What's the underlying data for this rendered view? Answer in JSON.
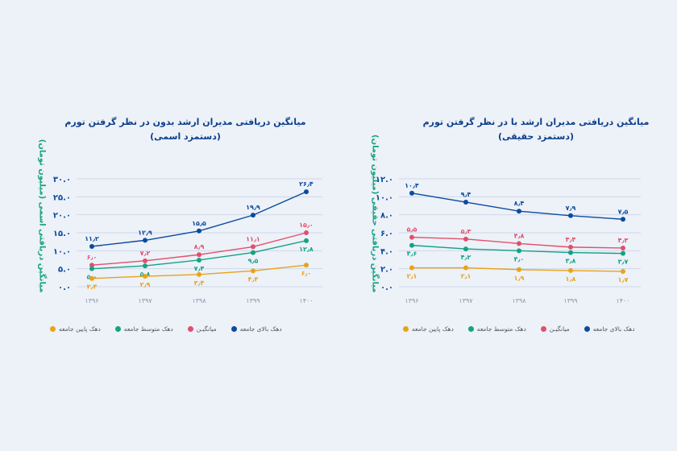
{
  "left": {
    "title_line1": "میانگین دریافتی مدیران ارشد بدون در نظر گرفتن تورم",
    "title_line2": "(دستمزد اسمی)",
    "ylabel": "میانگین دریافتی اسمی (میلیون تومان)"
  },
  "right": {
    "title_line1": "میانگین دریافتی مدیران ارشد با در نظر گرفتن تورم",
    "title_line2": "(دستمزد حقیقی)",
    "ylabel": "میانگین دریافتی حقیقی (میلیون تومان)"
  },
  "legend": [
    {
      "label": "دهک پایین جامعه",
      "color": "#e8a317"
    },
    {
      "label": "دهک متوسط جامعه",
      "color": "#13a383"
    },
    {
      "label": "میانگیـن",
      "color": "#e0506a"
    },
    {
      "label": "دهک بالای جامعه",
      "color": "#0b4b9e"
    }
  ],
  "chart_data": [
    {
      "type": "line",
      "title": "میانگین دریافتی مدیران ارشد بدون در نظر گرفتن تورم (دستمزد اسمی)",
      "xlabel": "",
      "ylabel": "میانگین دریافتی اسمی (میلیون تومان)",
      "categories": [
        "۱۳۹۶",
        "۱۳۹۷",
        "۱۳۹۸",
        "۱۳۹۹",
        "۱۴۰۰"
      ],
      "yticks": [
        "۰.۰",
        "۵.۰",
        "۱۰.۰",
        "۱۵.۰",
        "۲۰.۰",
        "۲۵.۰",
        "۳۰.۰"
      ],
      "ylim": [
        0,
        30
      ],
      "grid": true,
      "legend_position": "bottom",
      "series": [
        {
          "name": "دهک بالای جامعه",
          "color": "#0b4b9e",
          "values": [
            11.2,
            12.9,
            15.5,
            19.9,
            26.4
          ],
          "labels": [
            "۱۱٫۲",
            "۱۲٫۹",
            "۱۵٫۵",
            "۱۹٫۹",
            "۲۶٫۴"
          ]
        },
        {
          "name": "میانگیـن",
          "color": "#e0506a",
          "values": [
            6.0,
            7.2,
            8.9,
            11.1,
            15.0
          ],
          "labels": [
            "۶٫۰",
            "۷٫۲",
            "۸٫۹",
            "۱۱٫۱",
            "۱۵٫۰"
          ]
        },
        {
          "name": "دهک متوسط جامعه",
          "color": "#13a383",
          "values": [
            5.0,
            5.8,
            7.4,
            9.5,
            12.8
          ],
          "labels": [
            "۵٫۰",
            "۵٫۸",
            "۷٫۴",
            "۹٫۵",
            "۱۲٫۸"
          ]
        },
        {
          "name": "دهک پایین جامعه",
          "color": "#e8a317",
          "values": [
            2.3,
            2.9,
            3.4,
            4.4,
            6.0
          ],
          "labels": [
            "۲٫۳",
            "۲٫۹",
            "۳٫۴",
            "۴٫۴",
            "۶٫۰"
          ]
        }
      ]
    },
    {
      "type": "line",
      "title": "میانگین دریافتی مدیران ارشد با در نظر گرفتن تورم (دستمزد حقیقی)",
      "xlabel": "",
      "ylabel": "میانگین دریافتی حقیقی (میلیون تومان)",
      "categories": [
        "۱۳۹۶",
        "۱۳۹۷",
        "۱۳۹۸",
        "۱۳۹۹",
        "۱۴۰۰"
      ],
      "yticks": [
        "۰.۰",
        "۲.۰",
        "۴.۰",
        "۶.۰",
        "۸.۰",
        "۱۰.۰",
        "۱۲.۰"
      ],
      "ylim": [
        0,
        12
      ],
      "grid": true,
      "legend_position": "bottom",
      "series": [
        {
          "name": "دهک بالای جامعه",
          "color": "#0b4b9e",
          "values": [
            10.4,
            9.4,
            8.4,
            7.9,
            7.5
          ],
          "labels": [
            "۱۰٫۴",
            "۹٫۴",
            "۸٫۴",
            "۷٫۹",
            "۷٫۵"
          ]
        },
        {
          "name": "میانگیـن",
          "color": "#e0506a",
          "values": [
            5.5,
            5.3,
            4.8,
            4.4,
            4.3
          ],
          "labels": [
            "۵٫۵",
            "۵٫۳",
            "۴٫۸",
            "۴٫۴",
            "۴٫۳"
          ]
        },
        {
          "name": "دهک متوسط جامعه",
          "color": "#13a383",
          "values": [
            4.6,
            4.2,
            4.0,
            3.8,
            3.7
          ],
          "labels": [
            "۴٫۶",
            "۴٫۲",
            "۴٫۰",
            "۳٫۸",
            "۳٫۷"
          ]
        },
        {
          "name": "دهک پایین جامعه",
          "color": "#e8a317",
          "values": [
            2.1,
            2.1,
            1.9,
            1.8,
            1.7
          ],
          "labels": [
            "۲٫۱",
            "۲٫۱",
            "۱٫۹",
            "۱٫۸",
            "۱٫۷"
          ]
        }
      ]
    }
  ]
}
